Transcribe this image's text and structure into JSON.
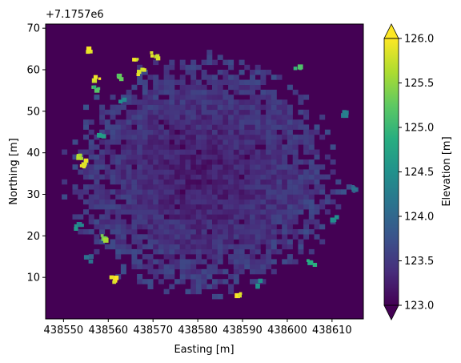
{
  "chart_data": {
    "type": "heatmap",
    "xlabel": "Easting [m]",
    "ylabel": "Northing [m]",
    "y_offset_label": "+7.1757e6",
    "xlim": [
      438546,
      438617
    ],
    "ylim": [
      0,
      71
    ],
    "xticks": [
      438550,
      438560,
      438570,
      438580,
      438590,
      438600,
      438610
    ],
    "xtick_labels": [
      "438550",
      "438560",
      "438570",
      "438580",
      "438590",
      "438600",
      "438610"
    ],
    "yticks": [
      10,
      20,
      30,
      40,
      50,
      60,
      70
    ],
    "ytick_labels": [
      "10",
      "20",
      "30",
      "40",
      "50",
      "60",
      "70"
    ],
    "colorbar": {
      "label": "Elevation [m]",
      "vmin": 123.0,
      "vmax": 126.0,
      "extend": "both",
      "cmap": "viridis",
      "ticks": [
        123.0,
        123.5,
        124.0,
        124.5,
        125.0,
        125.5,
        126.0
      ],
      "tick_labels": [
        "123.0",
        "123.5",
        "124.0",
        "124.5",
        "125.0",
        "125.5",
        "126.0"
      ]
    },
    "background_value": 123.0,
    "canopy_blob": {
      "center": [
        438581,
        34
      ],
      "radius_x": 32,
      "radius_y": 31,
      "core_value": 123.2,
      "edge_value": 123.6
    },
    "highlights": [
      {
        "x": 438553,
        "y": 39,
        "value": 125.8
      },
      {
        "x": 438554,
        "y": 37,
        "value": 126.0
      },
      {
        "x": 438555,
        "y": 64,
        "value": 126.0
      },
      {
        "x": 438557,
        "y": 55,
        "value": 125.2
      },
      {
        "x": 438557,
        "y": 57,
        "value": 126.0
      },
      {
        "x": 438558,
        "y": 43,
        "value": 124.8
      },
      {
        "x": 438561,
        "y": 9,
        "value": 126.0
      },
      {
        "x": 438562,
        "y": 58,
        "value": 125.4
      },
      {
        "x": 438563,
        "y": 52,
        "value": 124.6
      },
      {
        "x": 438566,
        "y": 62,
        "value": 126.0
      },
      {
        "x": 438567,
        "y": 59,
        "value": 126.0
      },
      {
        "x": 438570,
        "y": 63,
        "value": 126.0
      },
      {
        "x": 438553,
        "y": 22,
        "value": 124.6
      },
      {
        "x": 438555,
        "y": 14,
        "value": 124.2
      },
      {
        "x": 438559,
        "y": 19,
        "value": 125.6
      },
      {
        "x": 438589,
        "y": 5,
        "value": 126.0
      },
      {
        "x": 438593,
        "y": 8,
        "value": 124.7
      },
      {
        "x": 438602,
        "y": 60,
        "value": 125.2
      },
      {
        "x": 438605,
        "y": 13,
        "value": 125.0
      },
      {
        "x": 438612,
        "y": 49,
        "value": 124.4
      },
      {
        "x": 438614,
        "y": 31,
        "value": 124.2
      },
      {
        "x": 438610,
        "y": 24,
        "value": 124.5
      }
    ]
  }
}
